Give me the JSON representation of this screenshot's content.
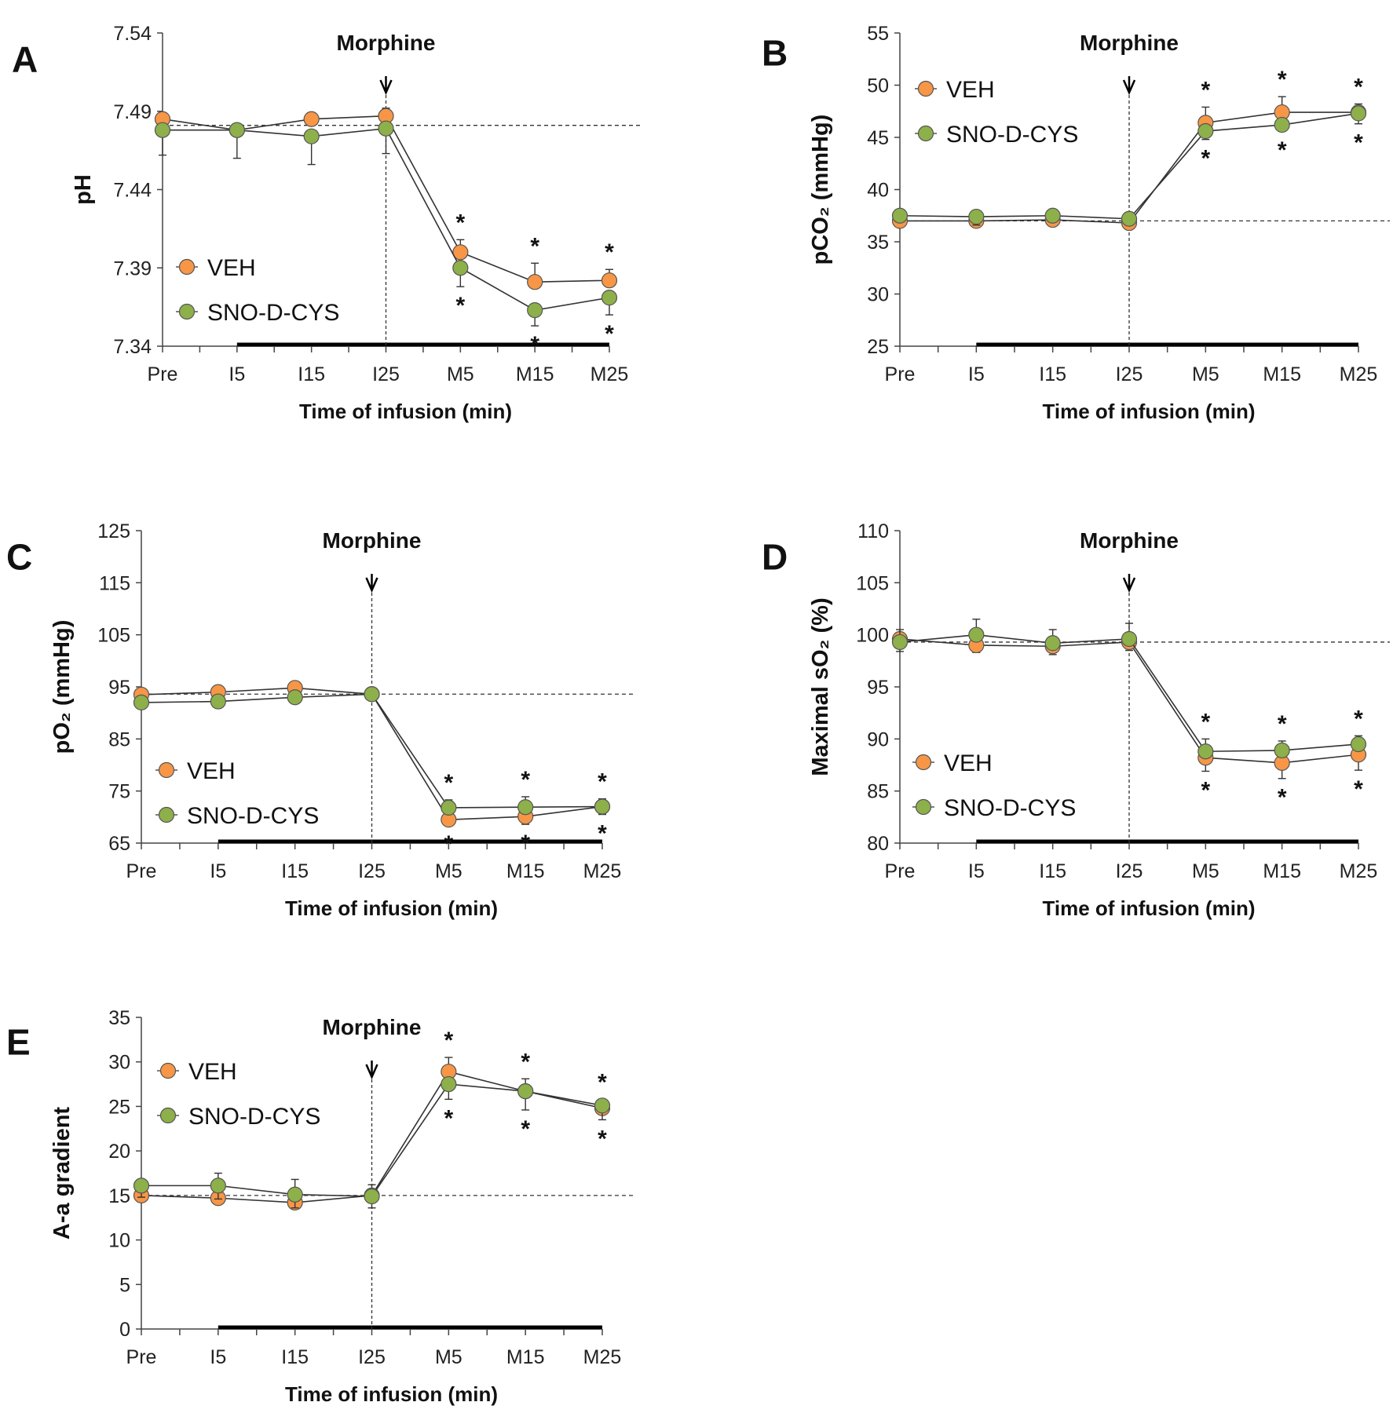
{
  "colors": {
    "VEH": "#F79646",
    "SNO-D-CYS": "#8DB04A",
    "line": "#333333"
  },
  "chart_data": [
    {
      "panel": "A",
      "type": "line",
      "categories": [
        "Pre",
        "I5",
        "I15",
        "I25",
        "M5",
        "M15",
        "M25"
      ],
      "xlabel": "Time of infusion (min)",
      "ylabel": "pH",
      "ylim": [
        7.34,
        7.54
      ],
      "yticks": [
        "7.34",
        "7.39",
        "7.44",
        "7.49",
        "7.54"
      ],
      "annotation": "Morphine",
      "annotation_at": "I25",
      "baseline": 7.481,
      "legend": "bottom-left",
      "series": [
        {
          "name": "VEH",
          "values": [
            7.485,
            7.478,
            7.485,
            7.487,
            7.4,
            7.381,
            7.382
          ],
          "error": [
            0.003,
            0.003,
            0.003,
            0.005,
            0.008,
            0.012,
            0.007
          ],
          "significant": [
            4,
            5,
            6
          ],
          "star": "above"
        },
        {
          "name": "SNO-D-CYS",
          "values": [
            7.478,
            7.478,
            7.474,
            7.479,
            7.39,
            7.363,
            7.371
          ],
          "error": [
            0.016,
            0.018,
            0.018,
            0.016,
            0.012,
            0.01,
            0.011
          ],
          "significant": [
            4,
            5,
            6
          ],
          "star": "below"
        }
      ]
    },
    {
      "panel": "B",
      "type": "line",
      "categories": [
        "Pre",
        "I5",
        "I15",
        "I25",
        "M5",
        "M15",
        "M25"
      ],
      "xlabel": "Time of infusion (min)",
      "ylabel": "pCO₂ (mmHg)",
      "ylim": [
        25,
        55
      ],
      "yticks": [
        "25",
        "30",
        "35",
        "40",
        "45",
        "50",
        "55"
      ],
      "annotation": "Morphine",
      "annotation_at": "I25",
      "baseline": 37.0,
      "legend": "top-left",
      "series": [
        {
          "name": "VEH",
          "values": [
            37.0,
            37.0,
            37.1,
            36.8,
            46.4,
            47.4,
            47.4
          ],
          "error": [
            0.5,
            0.5,
            0.5,
            0.5,
            1.5,
            1.5,
            0.8
          ],
          "significant": [
            4,
            5,
            6
          ],
          "star": "above"
        },
        {
          "name": "SNO-D-CYS",
          "values": [
            37.5,
            37.4,
            37.5,
            37.2,
            45.6,
            46.2,
            47.3
          ],
          "error": [
            0.5,
            0.8,
            0.5,
            0.5,
            0.8,
            0.6,
            1.0
          ],
          "significant": [
            4,
            5,
            6
          ],
          "star": "below"
        }
      ]
    },
    {
      "panel": "C",
      "type": "line",
      "categories": [
        "Pre",
        "I5",
        "I15",
        "I25",
        "M5",
        "M15",
        "M25"
      ],
      "xlabel": "Time of infusion (min)",
      "ylabel": "pO₂ (mmHg)",
      "ylim": [
        65,
        125
      ],
      "yticks": [
        "65",
        "75",
        "85",
        "95",
        "105",
        "115",
        "125"
      ],
      "annotation": "Morphine",
      "annotation_at": "I25",
      "baseline": 93.6,
      "legend": "bottom-left",
      "series": [
        {
          "name": "VEH",
          "values": [
            93.5,
            94.0,
            94.8,
            93.6,
            69.5,
            70.1,
            72.0
          ],
          "error": [
            1.0,
            2.5,
            2.0,
            1.0,
            1.0,
            1.5,
            1.5
          ],
          "significant": [
            4,
            5,
            6
          ],
          "star": "below"
        },
        {
          "name": "SNO-D-CYS",
          "values": [
            92.0,
            92.2,
            93.0,
            93.6,
            71.8,
            71.9,
            72.0
          ],
          "error": [
            1.0,
            1.0,
            1.0,
            1.0,
            1.5,
            2.0,
            1.5
          ],
          "significant": [
            4,
            5,
            6
          ],
          "star": "above"
        }
      ]
    },
    {
      "panel": "D",
      "type": "line",
      "categories": [
        "Pre",
        "I5",
        "I15",
        "I25",
        "M5",
        "M15",
        "M25"
      ],
      "xlabel": "Time of infusion (min)",
      "ylabel": "Maximal sO₂ (%)",
      "ylim": [
        80,
        110
      ],
      "yticks": [
        "80",
        "85",
        "90",
        "95",
        "100",
        "105",
        "110"
      ],
      "annotation": "Morphine",
      "annotation_at": "I25",
      "baseline": 99.3,
      "legend": "bottom-left",
      "series": [
        {
          "name": "VEH",
          "values": [
            99.6,
            99.0,
            98.9,
            99.3,
            88.2,
            87.7,
            88.5
          ],
          "error": [
            1.2,
            0.7,
            0.8,
            0.8,
            1.3,
            1.5,
            1.5
          ],
          "significant": [
            4,
            5,
            6
          ],
          "star": "below"
        },
        {
          "name": "SNO-D-CYS",
          "values": [
            99.3,
            100.0,
            99.2,
            99.6,
            88.8,
            88.9,
            89.5
          ],
          "error": [
            1.2,
            1.5,
            1.3,
            1.5,
            1.2,
            0.9,
            0.8
          ],
          "significant": [
            4,
            5,
            6
          ],
          "star": "above"
        }
      ]
    },
    {
      "panel": "E",
      "type": "line",
      "categories": [
        "Pre",
        "I5",
        "I15",
        "I25",
        "M5",
        "M15",
        "M25"
      ],
      "xlabel": "Time of infusion (min)",
      "ylabel": "A-a gradient",
      "ylim": [
        0,
        35
      ],
      "yticks": [
        "0",
        "5",
        "10",
        "15",
        "20",
        "25",
        "30",
        "35"
      ],
      "annotation": "Morphine",
      "annotation_at": "I25",
      "baseline": 15.0,
      "legend": "top-left",
      "series": [
        {
          "name": "VEH",
          "values": [
            15.0,
            14.7,
            14.2,
            15.0,
            28.9,
            26.7,
            24.8
          ],
          "error": [
            1.2,
            2.8,
            2.6,
            1.2,
            1.6,
            1.4,
            1.0
          ],
          "significant": [
            4,
            5,
            6
          ],
          "star": "above"
        },
        {
          "name": "SNO-D-CYS",
          "values": [
            16.1,
            16.1,
            15.1,
            14.9,
            27.5,
            26.7,
            25.1
          ],
          "error": [
            1.3,
            1.5,
            1.5,
            1.3,
            1.7,
            2.1,
            1.6
          ],
          "significant": [
            4,
            5,
            6
          ],
          "star": "below"
        }
      ]
    }
  ]
}
